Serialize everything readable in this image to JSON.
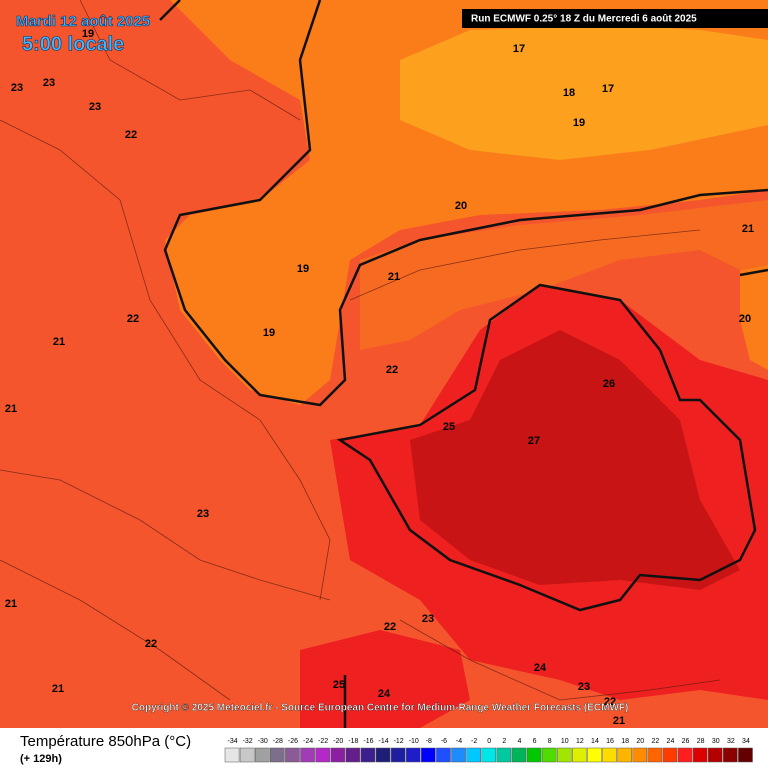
{
  "header": {
    "date": "Mardi 12 août 2025",
    "time": "5:00 locale",
    "run": "Run ECMWF 0.25° 18 Z du Mercredi 6 août 2025"
  },
  "map": {
    "contour_labels": [
      19,
      23,
      23,
      23,
      22,
      17,
      18,
      17,
      19,
      20,
      21,
      19,
      21,
      22,
      19,
      21,
      20,
      22,
      26,
      21,
      25,
      27,
      23,
      21,
      22,
      23,
      22,
      24,
      21,
      25,
      24,
      23,
      22,
      21
    ]
  },
  "copyright": "Copyright © 2025 Meteociel.fr - Source European Centre for Medium-Range Weather Forecasts (ECMWF)",
  "footer": {
    "title": "Température 850hPa (°C)",
    "lead": "(+ 129h)"
  },
  "legend": {
    "values": [
      -34,
      -32,
      -30,
      -28,
      -26,
      -24,
      -22,
      -20,
      -18,
      -16,
      -14,
      -12,
      -10,
      -8,
      -6,
      -4,
      -2,
      0,
      2,
      4,
      6,
      8,
      10,
      12,
      14,
      16,
      18,
      20,
      22,
      24,
      26,
      28,
      30,
      32,
      34
    ],
    "colors": [
      "#e6e6e6",
      "#c8c8c8",
      "#a0a0a0",
      "#7d6e8c",
      "#8c5a96",
      "#a03cb4",
      "#b428c8",
      "#8c1ea0",
      "#641e8c",
      "#3c1e8c",
      "#1e1e78",
      "#1e1ea0",
      "#1e1ec8",
      "#0000ff",
      "#1e50ff",
      "#1e8cff",
      "#00c8ff",
      "#00e6e6",
      "#00c8a0",
      "#00b45a",
      "#00c800",
      "#50dc00",
      "#a0e600",
      "#dcf000",
      "#ffff00",
      "#ffdc00",
      "#ffb400",
      "#ff8c00",
      "#ff6400",
      "#ff3c00",
      "#ff1e1e",
      "#dc0000",
      "#b40000",
      "#8c0000",
      "#640000"
    ]
  }
}
